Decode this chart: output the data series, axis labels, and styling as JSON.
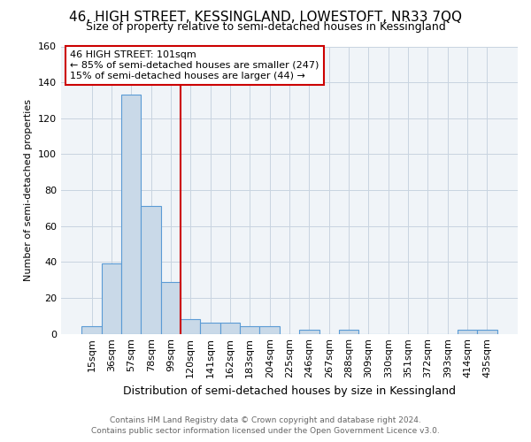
{
  "title": "46, HIGH STREET, KESSINGLAND, LOWESTOFT, NR33 7QQ",
  "subtitle": "Size of property relative to semi-detached houses in Kessingland",
  "xlabel": "Distribution of semi-detached houses by size in Kessingland",
  "ylabel": "Number of semi-detached properties",
  "footer_line1": "Contains HM Land Registry data © Crown copyright and database right 2024.",
  "footer_line2": "Contains public sector information licensed under the Open Government Licence v3.0.",
  "bar_labels": [
    "15sqm",
    "36sqm",
    "57sqm",
    "78sqm",
    "99sqm",
    "120sqm",
    "141sqm",
    "162sqm",
    "183sqm",
    "204sqm",
    "225sqm",
    "246sqm",
    "267sqm",
    "288sqm",
    "309sqm",
    "330sqm",
    "351sqm",
    "372sqm",
    "393sqm",
    "414sqm",
    "435sqm"
  ],
  "bar_values": [
    4,
    39,
    133,
    71,
    29,
    8,
    6,
    6,
    4,
    4,
    0,
    2,
    0,
    2,
    0,
    0,
    0,
    0,
    0,
    2,
    2
  ],
  "bar_color": "#c9d9e8",
  "bar_edgecolor": "#5b9bd5",
  "annotation_line1": "46 HIGH STREET: 101sqm",
  "annotation_line2": "← 85% of semi-detached houses are smaller (247)",
  "annotation_line3": "15% of semi-detached houses are larger (44) →",
  "vline_x": 4.5,
  "vline_color": "#cc0000",
  "annotation_box_edgecolor": "#cc0000",
  "ylim": [
    0,
    160
  ],
  "yticks": [
    0,
    20,
    40,
    60,
    80,
    100,
    120,
    140,
    160
  ],
  "figsize": [
    6.0,
    5.0
  ],
  "dpi": 100,
  "title_fontsize": 11,
  "subtitle_fontsize": 9,
  "xlabel_fontsize": 9,
  "ylabel_fontsize": 8,
  "tick_fontsize": 8,
  "annotation_fontsize": 8,
  "footer_fontsize": 6.5,
  "bg_color": "#f0f4f8"
}
